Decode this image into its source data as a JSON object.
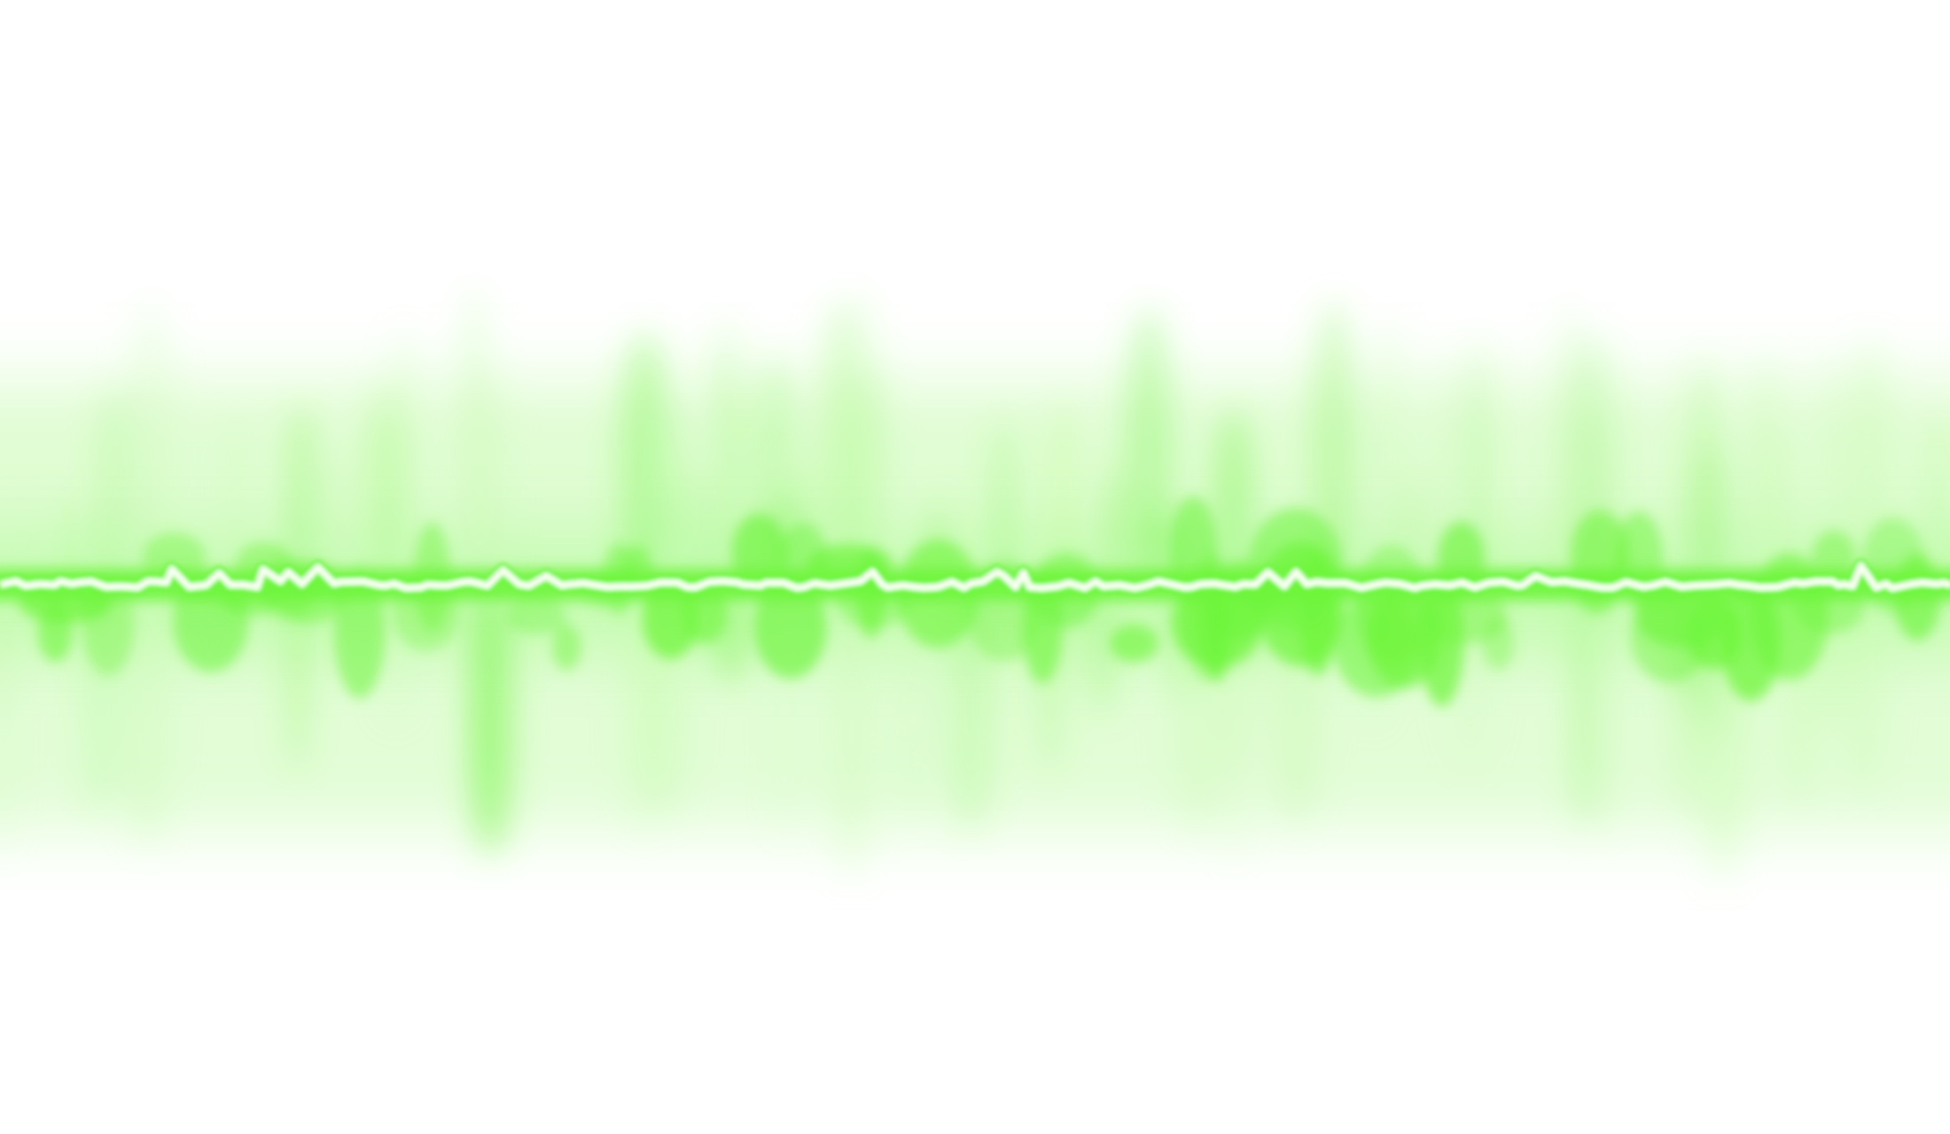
{
  "image": {
    "subject": "green-energy-wave",
    "colors": {
      "background": "#ffffff",
      "glow_primary": "#6ff53c",
      "glow_soft": "#c8fbb0",
      "core": "#f6fff0"
    }
  }
}
